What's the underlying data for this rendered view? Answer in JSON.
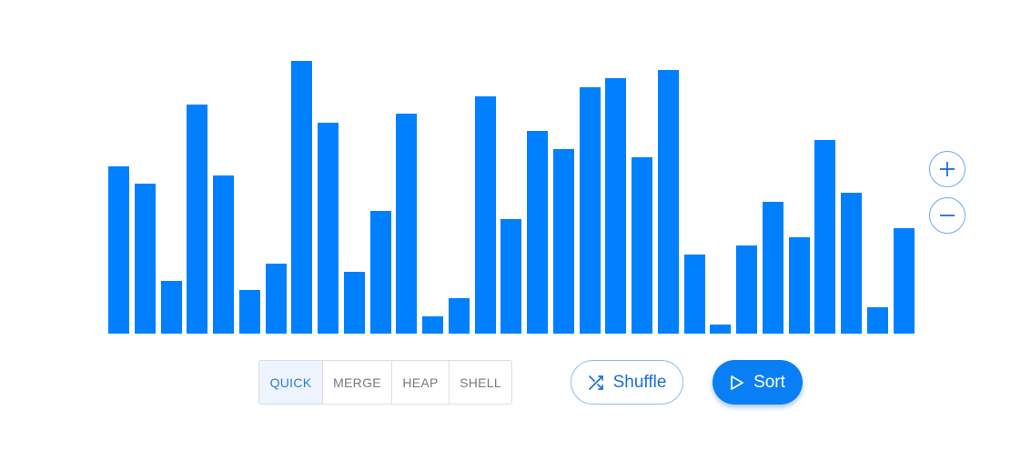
{
  "array": {
    "values": [
      190,
      170,
      60,
      260,
      180,
      50,
      80,
      310,
      240,
      70,
      140,
      250,
      20,
      40,
      270,
      130,
      230,
      210,
      280,
      290,
      200,
      300,
      90,
      10,
      100,
      150,
      110,
      220,
      160,
      30,
      120
    ],
    "max_value": 310,
    "bar_color": "#0080ff"
  },
  "zoom": {
    "in_icon": "plus-icon",
    "out_icon": "minus-icon"
  },
  "algorithms": {
    "options": [
      "QUICK",
      "MERGE",
      "HEAP",
      "SHELL"
    ],
    "selected": "QUICK"
  },
  "actions": {
    "shuffle_label": "Shuffle",
    "shuffle_icon": "shuffle-icon",
    "sort_label": "Sort",
    "sort_icon": "play-icon"
  },
  "colors": {
    "accent": "#0a7ff5",
    "selected_bg": "#edf4fd",
    "selected_text": "#2e7bd6"
  }
}
